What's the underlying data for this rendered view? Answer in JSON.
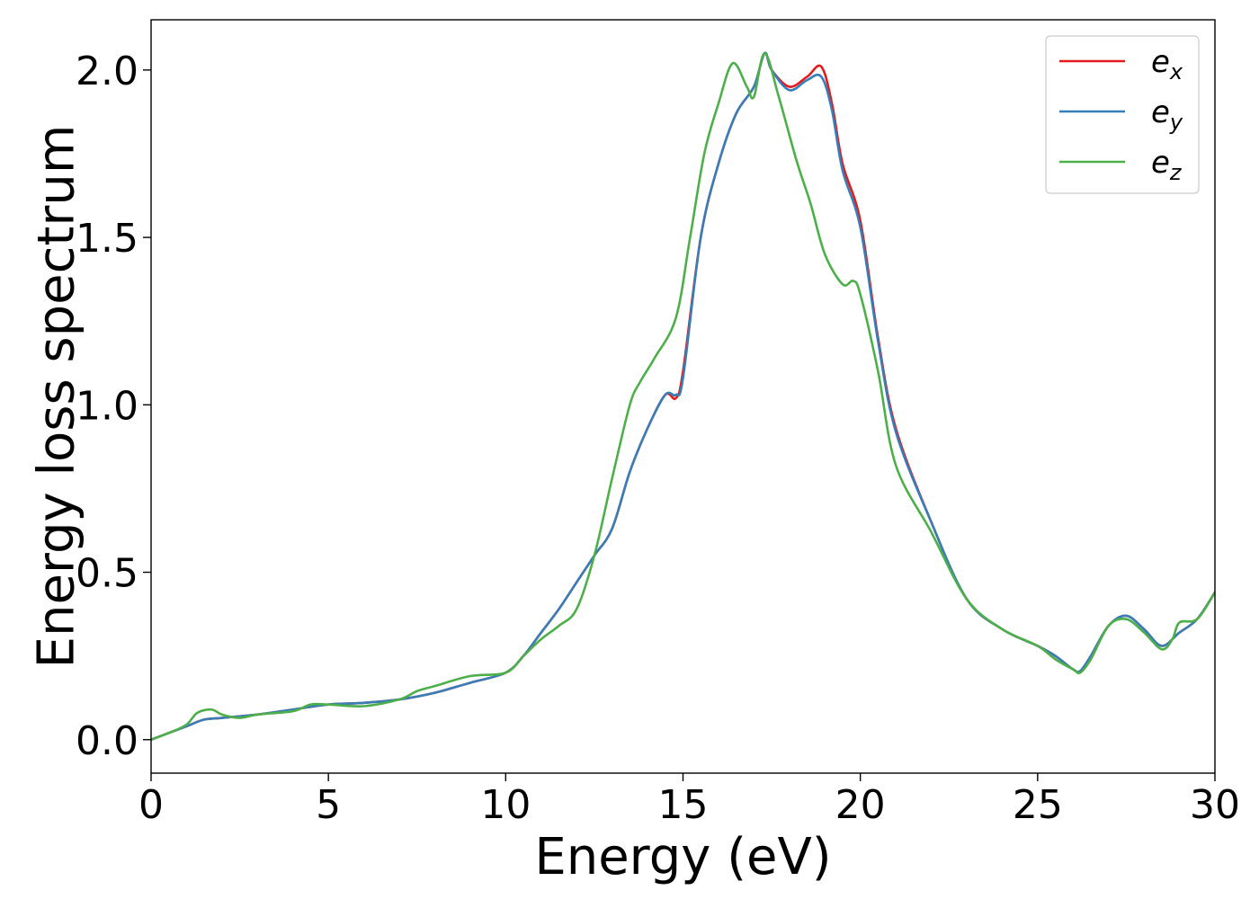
{
  "chart_data": {
    "type": "line",
    "xlabel": "Energy (eV)",
    "ylabel": "Energy loss spectrum",
    "xlim": [
      0,
      30
    ],
    "ylim": [
      -0.1,
      2.15
    ],
    "xticks": [
      0,
      5,
      10,
      15,
      20,
      25,
      30
    ],
    "xtick_labels": [
      "0",
      "5",
      "10",
      "15",
      "20",
      "25",
      "30"
    ],
    "yticks": [
      0.0,
      0.5,
      1.0,
      1.5,
      2.0
    ],
    "ytick_labels": [
      "0.0",
      "0.5",
      "1.0",
      "1.5",
      "2.0"
    ],
    "grid": false,
    "legend_position": "top-right",
    "series": [
      {
        "name": "e",
        "subscript": "x",
        "color": "#e41a1c",
        "x": [
          0,
          0.5,
          1,
          1.5,
          2,
          3,
          4,
          5,
          6,
          7,
          8,
          9,
          10,
          10.5,
          11,
          11.5,
          12,
          12.5,
          13,
          13.5,
          14,
          14.5,
          14.8,
          15,
          15.5,
          16,
          16.5,
          17,
          17.3,
          17.5,
          18,
          18.5,
          18.9,
          19.2,
          19.5,
          20,
          20.5,
          21,
          22,
          23,
          24,
          25,
          25.5,
          26,
          26.2,
          26.5,
          27,
          27.5,
          28,
          28.5,
          29,
          29.5,
          30
        ],
        "y": [
          0,
          0.02,
          0.04,
          0.06,
          0.065,
          0.075,
          0.09,
          0.105,
          0.11,
          0.12,
          0.14,
          0.17,
          0.2,
          0.25,
          0.32,
          0.39,
          0.47,
          0.55,
          0.63,
          0.8,
          0.93,
          1.03,
          1.02,
          1.1,
          1.5,
          1.72,
          1.87,
          1.95,
          2.05,
          2.0,
          1.95,
          1.98,
          2.01,
          1.9,
          1.72,
          1.55,
          1.2,
          0.93,
          0.65,
          0.42,
          0.33,
          0.28,
          0.25,
          0.21,
          0.205,
          0.25,
          0.34,
          0.37,
          0.33,
          0.28,
          0.32,
          0.36,
          0.44
        ]
      },
      {
        "name": "e",
        "subscript": "y",
        "color": "#377eb8",
        "x": [
          0,
          0.5,
          1,
          1.5,
          2,
          3,
          4,
          5,
          6,
          7,
          8,
          9,
          10,
          10.5,
          11,
          11.5,
          12,
          12.5,
          13,
          13.5,
          14,
          14.5,
          14.8,
          15,
          15.5,
          16,
          16.5,
          17,
          17.3,
          17.5,
          18,
          18.5,
          18.9,
          19.2,
          19.5,
          20,
          20.5,
          21,
          22,
          23,
          24,
          25,
          25.5,
          26,
          26.2,
          26.5,
          27,
          27.5,
          28,
          28.5,
          29,
          29.5,
          30
        ],
        "y": [
          0,
          0.02,
          0.04,
          0.06,
          0.065,
          0.075,
          0.09,
          0.105,
          0.11,
          0.12,
          0.14,
          0.17,
          0.2,
          0.25,
          0.32,
          0.39,
          0.47,
          0.55,
          0.63,
          0.8,
          0.93,
          1.03,
          1.03,
          1.08,
          1.5,
          1.72,
          1.87,
          1.95,
          2.05,
          2.0,
          1.94,
          1.97,
          1.98,
          1.88,
          1.7,
          1.53,
          1.19,
          0.92,
          0.65,
          0.42,
          0.33,
          0.28,
          0.25,
          0.21,
          0.205,
          0.25,
          0.34,
          0.37,
          0.33,
          0.28,
          0.32,
          0.36,
          0.44
        ]
      },
      {
        "name": "e",
        "subscript": "z",
        "color": "#4daf4a",
        "x": [
          0,
          0.5,
          1,
          1.3,
          1.7,
          2,
          2.5,
          3,
          4,
          4.5,
          5,
          6,
          7,
          7.5,
          8,
          9,
          10,
          10.5,
          11,
          11.5,
          12,
          12.5,
          13,
          13.5,
          13.8,
          14.2,
          14.8,
          15.2,
          15.6,
          16,
          16.4,
          16.8,
          17,
          17.3,
          17.7,
          18.2,
          18.6,
          19,
          19.5,
          19.8,
          20,
          20.5,
          21,
          22,
          23,
          24,
          25,
          25.5,
          26,
          26.2,
          26.5,
          27,
          27.5,
          28,
          28.5,
          28.8,
          29,
          29.5,
          30
        ],
        "y": [
          0,
          0.02,
          0.045,
          0.08,
          0.09,
          0.075,
          0.065,
          0.075,
          0.085,
          0.105,
          0.105,
          0.1,
          0.12,
          0.145,
          0.16,
          0.19,
          0.2,
          0.25,
          0.3,
          0.34,
          0.39,
          0.55,
          0.78,
          1.0,
          1.07,
          1.14,
          1.26,
          1.5,
          1.75,
          1.9,
          2.02,
          1.95,
          1.92,
          2.05,
          1.92,
          1.73,
          1.6,
          1.45,
          1.36,
          1.37,
          1.33,
          1.1,
          0.82,
          0.62,
          0.42,
          0.33,
          0.28,
          0.24,
          0.21,
          0.2,
          0.24,
          0.34,
          0.36,
          0.32,
          0.27,
          0.3,
          0.35,
          0.36,
          0.44
        ]
      }
    ]
  }
}
